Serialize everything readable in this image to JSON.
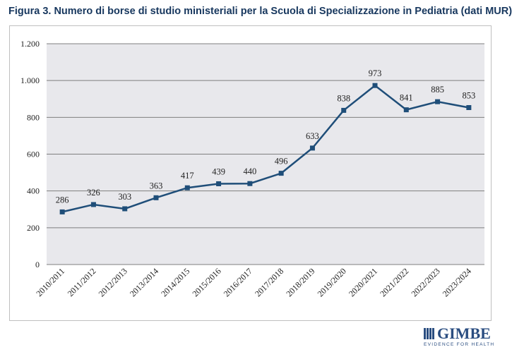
{
  "title": "Figura 3. Numero di borse di studio ministeriali per la Scuola di Specializzazione in Pediatria (dati MUR)",
  "logo": {
    "name": "GIMBE",
    "tagline": "EVIDENCE FOR HEALTH"
  },
  "colors": {
    "line": "#1f4e79",
    "plot_bg": "#e8e8ec",
    "grid": "#7f7f7f"
  },
  "chart_data": {
    "type": "line",
    "title": "Figura 3. Numero di borse di studio ministeriali per la Scuola di Specializzazione in Pediatria (dati MUR)",
    "xlabel": "",
    "ylabel": "",
    "categories": [
      "2010/2011",
      "2011/2012",
      "2012/2013",
      "2013/2014",
      "2014/2015",
      "2015/2016",
      "2016/2017",
      "2017/2018",
      "2018/2019",
      "2019/2020",
      "2020/2021",
      "2021/2022",
      "2022/2023",
      "2023/2024"
    ],
    "values": [
      286,
      326,
      303,
      363,
      417,
      439,
      440,
      496,
      633,
      838,
      973,
      841,
      885,
      853
    ],
    "ylim": [
      0,
      1200
    ],
    "yticks": [
      0,
      200,
      400,
      600,
      800,
      1000,
      1200
    ],
    "ytick_labels": [
      "0",
      "200",
      "400",
      "600",
      "800",
      "1.000",
      "1.200"
    ],
    "grid": true,
    "legend": "none"
  }
}
